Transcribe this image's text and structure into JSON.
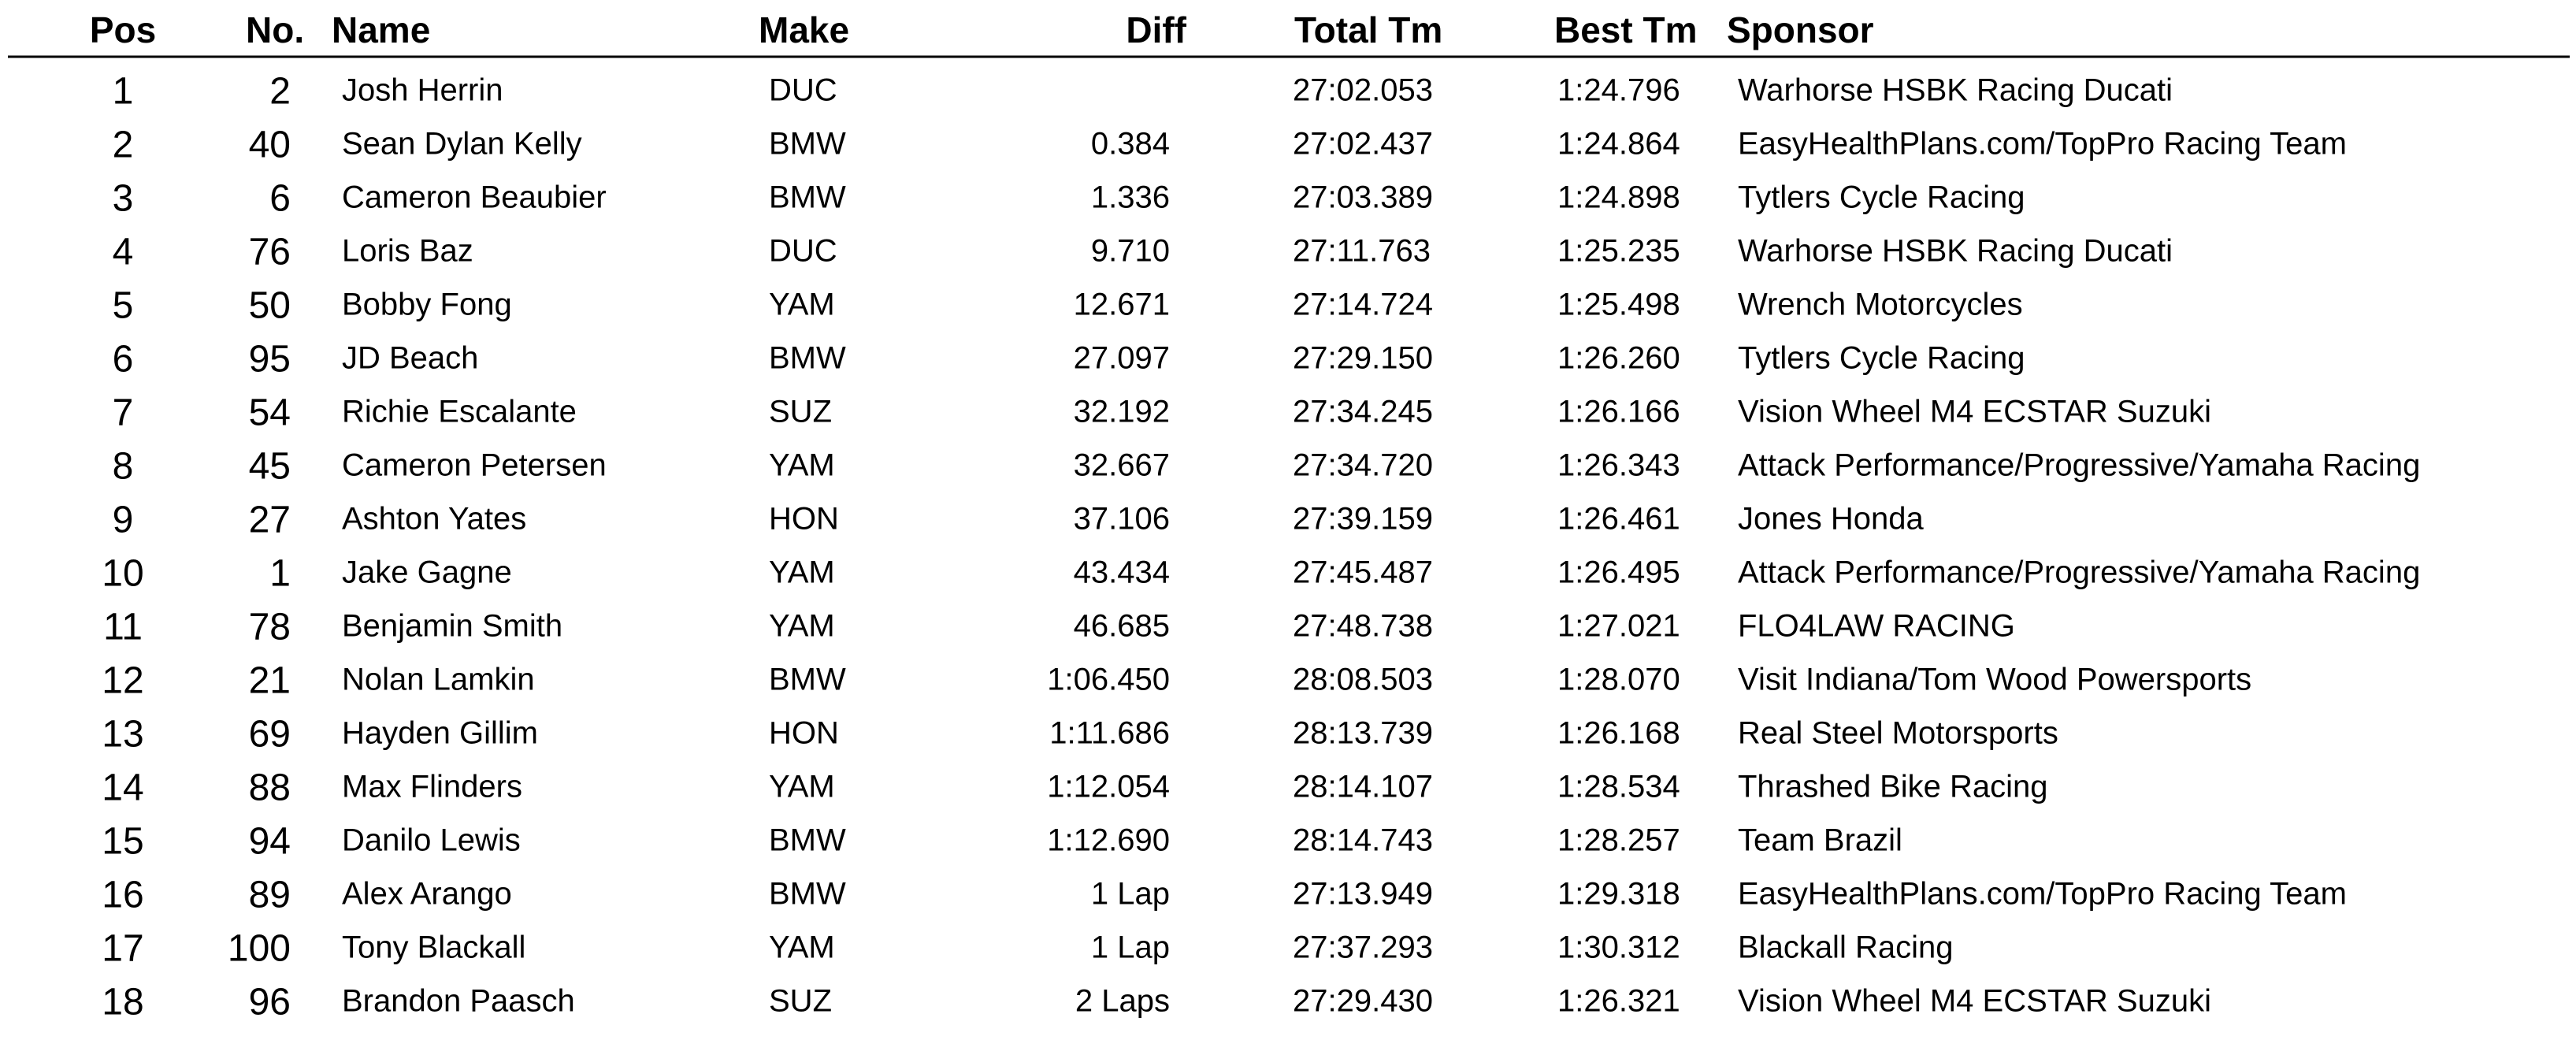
{
  "table": {
    "columns": [
      "Pos",
      "No.",
      "Name",
      "Make",
      "Diff",
      "Total Tm",
      "Best Tm",
      "Sponsor"
    ],
    "rows": [
      [
        "1",
        "2",
        "Josh Herrin",
        "DUC",
        null,
        "27:02.053",
        "1:24.796",
        "Warhorse HSBK Racing Ducati"
      ],
      [
        "2",
        "40",
        "Sean Dylan Kelly",
        "BMW",
        "0.384",
        "27:02.437",
        "1:24.864",
        "EasyHealthPlans.com/TopPro Racing Team"
      ],
      [
        "3",
        "6",
        "Cameron Beaubier",
        "BMW",
        "1.336",
        "27:03.389",
        "1:24.898",
        "Tytlers Cycle Racing"
      ],
      [
        "4",
        "76",
        "Loris Baz",
        "DUC",
        "9.710",
        "27:11.763",
        "1:25.235",
        "Warhorse HSBK Racing Ducati"
      ],
      [
        "5",
        "50",
        "Bobby Fong",
        "YAM",
        "12.671",
        "27:14.724",
        "1:25.498",
        "Wrench Motorcycles"
      ],
      [
        "6",
        "95",
        "JD Beach",
        "BMW",
        "27.097",
        "27:29.150",
        "1:26.260",
        "Tytlers Cycle Racing"
      ],
      [
        "7",
        "54",
        "Richie Escalante",
        "SUZ",
        "32.192",
        "27:34.245",
        "1:26.166",
        "Vision Wheel M4 ECSTAR Suzuki"
      ],
      [
        "8",
        "45",
        "Cameron Petersen",
        "YAM",
        "32.667",
        "27:34.720",
        "1:26.343",
        "Attack Performance/Progressive/Yamaha Racing"
      ],
      [
        "9",
        "27",
        "Ashton Yates",
        "HON",
        "37.106",
        "27:39.159",
        "1:26.461",
        "Jones Honda"
      ],
      [
        "10",
        "1",
        "Jake Gagne",
        "YAM",
        "43.434",
        "27:45.487",
        "1:26.495",
        "Attack Performance/Progressive/Yamaha Racing"
      ],
      [
        "11",
        "78",
        "Benjamin Smith",
        "YAM",
        "46.685",
        "27:48.738",
        "1:27.021",
        "FLO4LAW RACING"
      ],
      [
        "12",
        "21",
        "Nolan Lamkin",
        "BMW",
        "1:06.450",
        "28:08.503",
        "1:28.070",
        "Visit Indiana/Tom Wood Powersports"
      ],
      [
        "13",
        "69",
        "Hayden Gillim",
        "HON",
        "1:11.686",
        "28:13.739",
        "1:26.168",
        "Real Steel Motorsports"
      ],
      [
        "14",
        "88",
        "Max Flinders",
        "YAM",
        "1:12.054",
        "28:14.107",
        "1:28.534",
        "Thrashed Bike Racing"
      ],
      [
        "15",
        "94",
        "Danilo Lewis",
        "BMW",
        "1:12.690",
        "28:14.743",
        "1:28.257",
        "Team Brazil"
      ],
      [
        "16",
        "89",
        "Alex Arango",
        "BMW",
        "1 Lap",
        "27:13.949",
        "1:29.318",
        "EasyHealthPlans.com/TopPro Racing Team"
      ],
      [
        "17",
        "100",
        "Tony Blackall",
        "YAM",
        "1 Lap",
        "27:37.293",
        "1:30.312",
        "Blackall Racing"
      ],
      [
        "18",
        "96",
        "Brandon Paasch",
        "SUZ",
        "2 Laps",
        "27:29.430",
        "1:26.321",
        "Vision Wheel M4 ECSTAR Suzuki"
      ]
    ]
  }
}
